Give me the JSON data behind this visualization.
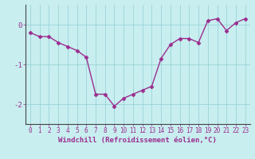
{
  "x": [
    0,
    1,
    2,
    3,
    4,
    5,
    6,
    7,
    8,
    9,
    10,
    11,
    12,
    13,
    14,
    15,
    16,
    17,
    18,
    19,
    20,
    21,
    22,
    23
  ],
  "y": [
    -0.2,
    -0.3,
    -0.3,
    -0.45,
    -0.55,
    -0.65,
    -0.82,
    -1.75,
    -1.75,
    -2.05,
    -1.85,
    -1.75,
    -1.65,
    -1.55,
    -0.85,
    -0.5,
    -0.35,
    -0.35,
    -0.45,
    0.1,
    0.15,
    -0.15,
    0.05,
    0.15
  ],
  "line_color": "#9B2D8E",
  "bg_color": "#C8EEF0",
  "grid_color": "#9AD4D8",
  "xlabel": "Windchill (Refroidissement éolien,°C)",
  "xlim_min": -0.5,
  "xlim_max": 23.5,
  "ylim_min": -2.5,
  "ylim_max": 0.5,
  "yticks": [
    -2,
    -1,
    0
  ],
  "ytick_labels": [
    "-2",
    "-1",
    "0"
  ],
  "xticks": [
    0,
    1,
    2,
    3,
    4,
    5,
    6,
    7,
    8,
    9,
    10,
    11,
    12,
    13,
    14,
    15,
    16,
    17,
    18,
    19,
    20,
    21,
    22,
    23
  ],
  "marker": "D",
  "markersize": 2.5,
  "linewidth": 1.0,
  "tick_fontsize": 5.5,
  "ytick_fontsize": 6.5,
  "xlabel_fontsize": 6.5
}
